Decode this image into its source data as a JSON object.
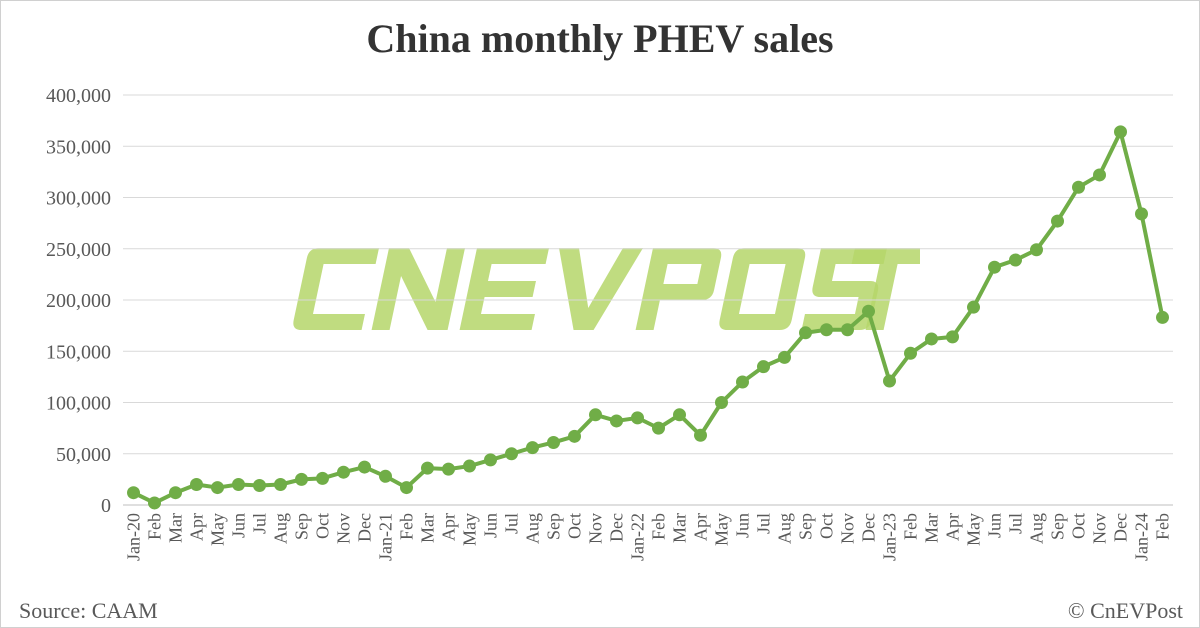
{
  "chart_data": {
    "type": "line",
    "title": "China monthly PHEV sales",
    "xlabel": "",
    "ylabel": "",
    "ylim": [
      0,
      400000
    ],
    "yticks": [
      "0",
      "50,000",
      "100,000",
      "150,000",
      "200,000",
      "250,000",
      "300,000",
      "350,000",
      "400,000"
    ],
    "grid": true,
    "categories": [
      "Jan-20",
      "Feb",
      "Mar",
      "Apr",
      "May",
      "Jun",
      "Jul",
      "Aug",
      "Sep",
      "Oct",
      "Nov",
      "Dec",
      "Jan-21",
      "Feb",
      "Mar",
      "Apr",
      "May",
      "Jun",
      "Jul",
      "Aug",
      "Sep",
      "Oct",
      "Nov",
      "Dec",
      "Jan-22",
      "Feb",
      "Mar",
      "Apr",
      "May",
      "Jun",
      "Jul",
      "Aug",
      "Sep",
      "Oct",
      "Nov",
      "Dec",
      "Jan-23",
      "Feb",
      "Mar",
      "Apr",
      "May",
      "Jun",
      "Jul",
      "Aug",
      "Sep",
      "Oct",
      "Nov",
      "Dec",
      "Jan-24",
      "Feb"
    ],
    "series": [
      {
        "values": [
          12000,
          2000,
          12000,
          20000,
          17000,
          20000,
          19000,
          20000,
          25000,
          26000,
          32000,
          37000,
          28000,
          17000,
          36000,
          35000,
          38000,
          44000,
          50000,
          56000,
          61000,
          67000,
          88000,
          82000,
          85000,
          75000,
          88000,
          68000,
          100000,
          120000,
          135000,
          144000,
          168000,
          171000,
          171000,
          189000,
          121000,
          148000,
          162000,
          164000,
          193000,
          232000,
          239000,
          249000,
          277000,
          310000,
          322000,
          364000,
          284000,
          183000
        ],
        "color": "#70ad47"
      }
    ]
  },
  "footer": {
    "source": "Source: CAAM",
    "copyright": "© CnEVPost"
  },
  "watermark": {
    "text": "CNEVPOST",
    "color": "#b5d66a"
  }
}
